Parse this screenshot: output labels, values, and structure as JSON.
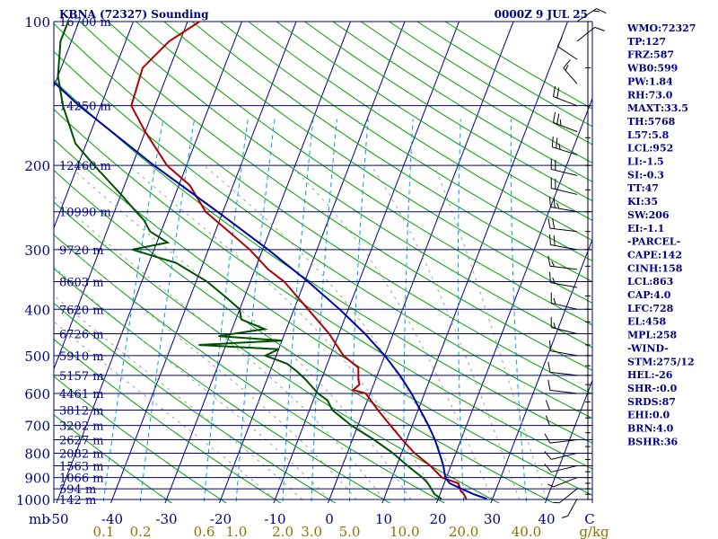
{
  "chart_data": {
    "type": "skew-t",
    "title": "KBNA (72327) Sounding",
    "time": "0000Z  9 JUL 25",
    "pressure_axis": {
      "unit_label": "mb",
      "levels": [
        100,
        200,
        300,
        400,
        500,
        600,
        700,
        800,
        900,
        1000
      ],
      "labels": [
        "100",
        "200",
        "300",
        "400",
        "500",
        "600",
        "700",
        "800",
        "900",
        "1000"
      ]
    },
    "height_levels": [
      {
        "p": 100,
        "label": "16700 m"
      },
      {
        "p": 150,
        "label": "14250 m"
      },
      {
        "p": 200,
        "label": "12460 m"
      },
      {
        "p": 250,
        "label": "10990 m"
      },
      {
        "p": 300,
        "label": "9720 m"
      },
      {
        "p": 350,
        "label": "8603 m"
      },
      {
        "p": 400,
        "label": "7620 m"
      },
      {
        "p": 450,
        "label": "6726 m"
      },
      {
        "p": 500,
        "label": "5910 m"
      },
      {
        "p": 550,
        "label": "5157 m"
      },
      {
        "p": 600,
        "label": "4461 m"
      },
      {
        "p": 650,
        "label": "3812 m"
      },
      {
        "p": 700,
        "label": "3202 m"
      },
      {
        "p": 750,
        "label": "2627 m"
      },
      {
        "p": 800,
        "label": "2082 m"
      },
      {
        "p": 850,
        "label": "1563 m"
      },
      {
        "p": 900,
        "label": "1066 m"
      },
      {
        "p": 950,
        "label": "594 m"
      },
      {
        "p": 1000,
        "label": "142 m"
      }
    ],
    "temperature_axis": {
      "values": [
        -50,
        -40,
        -30,
        -20,
        -10,
        0,
        10,
        20,
        30,
        40
      ],
      "labels": [
        "-50",
        "-40",
        "-30",
        "-20",
        "-10",
        "0",
        "10",
        "20",
        "30",
        "40"
      ],
      "end_label": "C"
    },
    "mixing_ratio_axis": {
      "values": [
        0.1,
        0.2,
        0.6,
        1.0,
        2.0,
        3.0,
        5.0,
        10.0,
        20.0,
        40.0
      ],
      "labels": [
        "0.1",
        "0.2",
        "0.6",
        "1.0",
        "2.0",
        "3.0",
        "5.0",
        "10.0",
        "20.0",
        "40.0"
      ],
      "unit_label": "g/kg"
    },
    "temperature_profile": {
      "name": "temperature",
      "points": [
        [
          997,
          25.2
        ],
        [
          975,
          24.4
        ],
        [
          960,
          23.6
        ],
        [
          925,
          22.6
        ],
        [
          900,
          19.2
        ],
        [
          850,
          16.2
        ],
        [
          800,
          12.4
        ],
        [
          750,
          9.2
        ],
        [
          700,
          6.0
        ],
        [
          650,
          2.6
        ],
        [
          600,
          -0.8
        ],
        [
          590,
          -3.4
        ],
        [
          575,
          -2.6
        ],
        [
          560,
          -3.2
        ],
        [
          530,
          -4.0
        ],
        [
          500,
          -7.6
        ],
        [
          450,
          -11.8
        ],
        [
          400,
          -17.4
        ],
        [
          350,
          -23.8
        ],
        [
          330,
          -27.6
        ],
        [
          300,
          -32.4
        ],
        [
          270,
          -38.6
        ],
        [
          250,
          -43.2
        ],
        [
          220,
          -48.0
        ],
        [
          200,
          -53.6
        ],
        [
          170,
          -60.0
        ],
        [
          150,
          -64.4
        ],
        [
          125,
          -65.0
        ],
        [
          110,
          -62.0
        ],
        [
          100,
          -57.8
        ]
      ]
    },
    "dewpoint_profile": {
      "name": "dewpoint",
      "points": [
        [
          997,
          20.6
        ],
        [
          975,
          19.0
        ],
        [
          960,
          18.4
        ],
        [
          925,
          17.0
        ],
        [
          900,
          15.6
        ],
        [
          850,
          12.0
        ],
        [
          800,
          8.4
        ],
        [
          750,
          4.0
        ],
        [
          700,
          -1.2
        ],
        [
          650,
          -5.8
        ],
        [
          620,
          -7.4
        ],
        [
          600,
          -9.6
        ],
        [
          560,
          -13.0
        ],
        [
          540,
          -15.0
        ],
        [
          520,
          -17.4
        ],
        [
          500,
          -22.0
        ],
        [
          485,
          -20.0
        ],
        [
          475,
          -35.0
        ],
        [
          465,
          -20.0
        ],
        [
          455,
          -32.0
        ],
        [
          440,
          -24.0
        ],
        [
          420,
          -29.0
        ],
        [
          400,
          -30.0
        ],
        [
          380,
          -33.0
        ],
        [
          350,
          -38.0
        ],
        [
          320,
          -45.0
        ],
        [
          300,
          -54.0
        ],
        [
          290,
          -48.0
        ],
        [
          275,
          -52.0
        ],
        [
          260,
          -54.0
        ],
        [
          250,
          -56.0
        ],
        [
          230,
          -60.0
        ],
        [
          200,
          -67.0
        ],
        [
          180,
          -72.0
        ],
        [
          150,
          -77.0
        ],
        [
          130,
          -80.0
        ],
        [
          110,
          -82.0
        ],
        [
          100,
          -82.0
        ]
      ]
    },
    "parcel_path": {
      "name": "parcel",
      "points": [
        [
          997,
          29.0
        ],
        [
          975,
          26.2
        ],
        [
          950,
          23.6
        ],
        [
          925,
          21.0
        ],
        [
          900,
          19.8
        ],
        [
          850,
          18.6
        ],
        [
          800,
          17.0
        ],
        [
          750,
          15.2
        ],
        [
          700,
          13.0
        ],
        [
          650,
          10.4
        ],
        [
          600,
          7.6
        ],
        [
          550,
          4.2
        ],
        [
          500,
          0.0
        ],
        [
          450,
          -5.2
        ],
        [
          400,
          -11.6
        ],
        [
          350,
          -19.4
        ],
        [
          300,
          -29.0
        ],
        [
          250,
          -41.0
        ],
        [
          200,
          -56.0
        ],
        [
          150,
          -74.0
        ],
        [
          130,
          -82.0
        ]
      ]
    },
    "winds": [
      {
        "p": 100,
        "dir": 45,
        "spd": 15
      },
      {
        "p": 110,
        "dir": 40,
        "spd": 10
      },
      {
        "p": 120,
        "dir": 315,
        "spd": 10
      },
      {
        "p": 135,
        "dir": 330,
        "spd": 15
      },
      {
        "p": 150,
        "dir": 300,
        "spd": 20
      },
      {
        "p": 170,
        "dir": 300,
        "spd": 25
      },
      {
        "p": 190,
        "dir": 295,
        "spd": 25
      },
      {
        "p": 210,
        "dir": 290,
        "spd": 20
      },
      {
        "p": 230,
        "dir": 290,
        "spd": 20
      },
      {
        "p": 250,
        "dir": 285,
        "spd": 25
      },
      {
        "p": 275,
        "dir": 280,
        "spd": 20
      },
      {
        "p": 300,
        "dir": 285,
        "spd": 20
      },
      {
        "p": 330,
        "dir": 280,
        "spd": 15
      },
      {
        "p": 360,
        "dir": 285,
        "spd": 15
      },
      {
        "p": 400,
        "dir": 290,
        "spd": 15
      },
      {
        "p": 450,
        "dir": 290,
        "spd": 15
      },
      {
        "p": 500,
        "dir": 285,
        "spd": 10
      },
      {
        "p": 550,
        "dir": 280,
        "spd": 10
      },
      {
        "p": 600,
        "dir": 280,
        "spd": 10
      },
      {
        "p": 650,
        "dir": 270,
        "spd": 10
      },
      {
        "p": 700,
        "dir": 270,
        "spd": 10
      },
      {
        "p": 750,
        "dir": 260,
        "spd": 10
      },
      {
        "p": 800,
        "dir": 250,
        "spd": 10
      },
      {
        "p": 850,
        "dir": 250,
        "spd": 10
      },
      {
        "p": 900,
        "dir": 240,
        "spd": 5
      },
      {
        "p": 950,
        "dir": 220,
        "spd": 5
      },
      {
        "p": 997,
        "dir": 200,
        "spd": 5
      }
    ],
    "indices": [
      {
        "label": "WMO:72327"
      },
      {
        "label": "TP:127"
      },
      {
        "label": "FRZ:587"
      },
      {
        "label": "WB0:599"
      },
      {
        "label": "PW:1.84"
      },
      {
        "label": "RH:73.0"
      },
      {
        "label": "MAXT:33.5"
      },
      {
        "label": "TH:5768"
      },
      {
        "label": "L57:5.8"
      },
      {
        "label": "LCL:952"
      },
      {
        "label": "LI:-1.5"
      },
      {
        "label": "SI:-0.3"
      },
      {
        "label": "TT:47"
      },
      {
        "label": "KI:35"
      },
      {
        "label": "SW:206"
      },
      {
        "label": "EI:-1.1"
      },
      {
        "label": "-PARCEL-"
      },
      {
        "label": "CAPE:142"
      },
      {
        "label": "CINH:158"
      },
      {
        "label": "LCL:863"
      },
      {
        "label": "CAP:4.0"
      },
      {
        "label": "LFC:728"
      },
      {
        "label": "EL:458"
      },
      {
        "label": "MPL:258"
      },
      {
        "label": "-WIND-"
      },
      {
        "label": "STM:275/12"
      },
      {
        "label": "HEL:-26"
      },
      {
        "label": "SHR-:0.0"
      },
      {
        "label": "SRDS:87"
      },
      {
        "label": "EHI:0.0"
      },
      {
        "label": "BRN:4.0"
      },
      {
        "label": "BSHR:36"
      }
    ],
    "colors": {
      "isobar": "#000080",
      "isotherm": "#000080",
      "dry_adiabat": "#00a000",
      "moist_adiabat": "#a0a0a0",
      "mixing_ratio": "#00a0e0",
      "temperature": "#b00000",
      "dewpoint": "#005000",
      "parcel": "#0000b0",
      "wind": "#000000",
      "text": "#000080",
      "mixing_ratio_text": "#8b7500"
    }
  }
}
